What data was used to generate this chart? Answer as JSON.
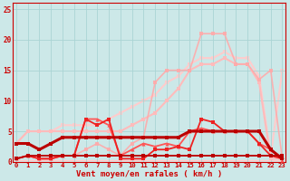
{
  "xlabel": "Vent moyen/en rafales ( km/h )",
  "bg_color": "#cce8e8",
  "grid_color": "#aad4d4",
  "x_ticks": [
    0,
    1,
    2,
    3,
    4,
    5,
    6,
    7,
    8,
    9,
    10,
    11,
    12,
    13,
    14,
    15,
    16,
    17,
    18,
    19,
    20,
    21,
    22,
    23
  ],
  "y_ticks": [
    0,
    5,
    10,
    15,
    20,
    25
  ],
  "xlim": [
    -0.3,
    23.3
  ],
  "ylim": [
    0,
    26
  ],
  "lines": [
    {
      "x": [
        0,
        1,
        2,
        3,
        4,
        5,
        6,
        7,
        8,
        9,
        10,
        11,
        12,
        13,
        14,
        15,
        16,
        17,
        18,
        19,
        20,
        21,
        22,
        23
      ],
      "y": [
        3,
        3,
        2,
        3,
        4,
        4,
        4,
        4,
        4,
        4,
        4,
        4,
        4,
        4,
        4,
        5,
        5,
        5,
        5,
        5,
        5,
        5,
        2,
        0.5
      ],
      "color": "#bb0000",
      "lw": 2.2,
      "marker": "s",
      "ms": 3.0,
      "alpha": 1.0,
      "zorder": 8
    },
    {
      "x": [
        0,
        1,
        2,
        3,
        4,
        5,
        6,
        7,
        8,
        9,
        10,
        11,
        12,
        13,
        14,
        15,
        16,
        17,
        18,
        19,
        20,
        21,
        22,
        23
      ],
      "y": [
        0.5,
        1,
        1,
        1,
        1,
        1,
        1,
        1,
        1,
        1,
        1,
        1,
        1,
        1,
        1,
        1,
        1,
        1,
        1,
        1,
        1,
        1,
        1,
        1
      ],
      "color": "#bb0000",
      "lw": 1.3,
      "marker": "s",
      "ms": 2.5,
      "alpha": 1.0,
      "zorder": 7
    },
    {
      "x": [
        0,
        1,
        2,
        3,
        4,
        5,
        6,
        7,
        8,
        9,
        10,
        11,
        12,
        13,
        14,
        15,
        16,
        17,
        18,
        19,
        20,
        21,
        22,
        23
      ],
      "y": [
        0.5,
        1,
        0.5,
        0.5,
        1,
        1,
        7,
        6,
        7,
        0.5,
        0.5,
        0.5,
        2,
        2,
        2.5,
        2,
        7,
        6.5,
        5,
        5,
        5,
        3,
        1,
        0.5
      ],
      "color": "#ee2222",
      "lw": 1.3,
      "marker": "s",
      "ms": 2.5,
      "alpha": 1.0,
      "zorder": 6
    },
    {
      "x": [
        0,
        1,
        2,
        3,
        4,
        5,
        6,
        7,
        8,
        9,
        10,
        11,
        12,
        13,
        14,
        15,
        16,
        17,
        18,
        19,
        20,
        21,
        22,
        23
      ],
      "y": [
        0.5,
        1,
        0.5,
        0.5,
        1,
        1,
        7,
        7,
        6,
        1,
        2,
        3,
        2.5,
        3,
        2.5,
        5,
        5.5,
        5,
        5,
        5,
        5,
        3,
        2,
        0.3
      ],
      "color": "#ff5555",
      "lw": 1.3,
      "marker": "^",
      "ms": 3.0,
      "alpha": 1.0,
      "zorder": 5
    },
    {
      "x": [
        0,
        1,
        2,
        3,
        4,
        5,
        6,
        7,
        8,
        9,
        10,
        11,
        12,
        13,
        14,
        15,
        16,
        17,
        18,
        19,
        20,
        21,
        22,
        23
      ],
      "y": [
        3,
        5,
        5,
        5,
        5,
        5,
        5,
        5,
        5,
        5,
        6,
        7,
        8,
        10,
        12,
        15,
        16,
        16,
        17,
        16,
        16,
        13,
        0.5,
        0.5
      ],
      "color": "#ffbbbb",
      "lw": 1.5,
      "marker": "s",
      "ms": 2.5,
      "alpha": 1.0,
      "zorder": 2
    },
    {
      "x": [
        0,
        1,
        2,
        3,
        4,
        5,
        6,
        7,
        8,
        9,
        10,
        11,
        12,
        13,
        14,
        15,
        16,
        17,
        18,
        19,
        20,
        21,
        22,
        23
      ],
      "y": [
        3,
        5,
        5,
        5,
        6,
        6,
        6,
        6,
        7,
        8,
        9,
        10,
        11,
        13,
        14,
        16,
        17,
        17,
        18,
        17,
        17,
        14,
        1,
        15
      ],
      "color": "#ffcccc",
      "lw": 1.5,
      "marker": "s",
      "ms": 2.5,
      "alpha": 1.0,
      "zorder": 1
    },
    {
      "x": [
        0,
        1,
        2,
        3,
        4,
        5,
        6,
        7,
        8,
        9,
        10,
        11,
        12,
        13,
        14,
        15,
        16,
        17,
        18,
        19,
        20,
        21,
        22,
        23
      ],
      "y": [
        0.5,
        1,
        0.5,
        0.5,
        1,
        1,
        2,
        3,
        2,
        1,
        3,
        4,
        13,
        15,
        15,
        15,
        21,
        21,
        21,
        16,
        16,
        13.5,
        15,
        0.5
      ],
      "color": "#ffaaaa",
      "lw": 1.2,
      "marker": "s",
      "ms": 2.5,
      "alpha": 0.9,
      "zorder": 3
    },
    {
      "x": [
        0,
        1,
        2,
        3,
        4,
        5,
        6,
        7,
        8,
        9,
        10,
        11,
        12,
        13,
        14,
        15,
        16,
        17,
        18,
        19,
        20,
        21,
        22,
        23
      ],
      "y": [
        0.3,
        0.3,
        0.3,
        0.3,
        0.3,
        0.3,
        0.3,
        0.3,
        0.3,
        0.3,
        0.3,
        0.3,
        0.3,
        0.3,
        0.3,
        0.3,
        0.3,
        0.3,
        0.3,
        0.3,
        0.3,
        0.3,
        0.3,
        0.3
      ],
      "color": "#ffcccc",
      "lw": 1.0,
      "marker": null,
      "ms": 0,
      "alpha": 1.0,
      "zorder": 1
    }
  ]
}
